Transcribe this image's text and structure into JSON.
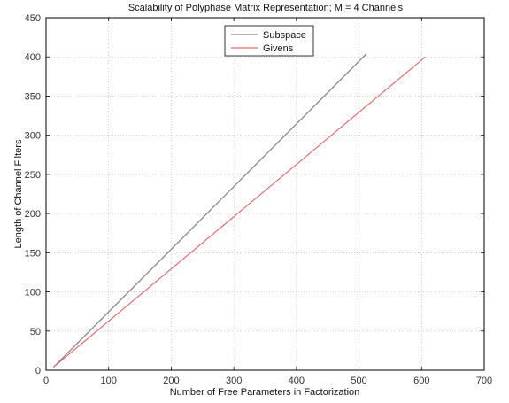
{
  "chart_data": {
    "type": "line",
    "title": "Scalability of Polyphase Matrix Representation;  M = 4 Channels",
    "xlabel": "Number of Free Parameters in Factorization",
    "ylabel": "Length of Channel Filters",
    "xlim": [
      0,
      700
    ],
    "ylim": [
      0,
      450
    ],
    "xticks": [
      0,
      100,
      200,
      300,
      400,
      500,
      600,
      700
    ],
    "yticks": [
      0,
      50,
      100,
      150,
      200,
      250,
      300,
      350,
      400,
      450
    ],
    "grid": true,
    "legend_position": "top-center",
    "series": [
      {
        "name": "Subspace",
        "color": "#808080",
        "x": [
          12,
          512
        ],
        "y": [
          4,
          404
        ]
      },
      {
        "name": "Givens",
        "color": "#e86a6a",
        "x": [
          12,
          606
        ],
        "y": [
          4,
          400
        ]
      }
    ]
  }
}
